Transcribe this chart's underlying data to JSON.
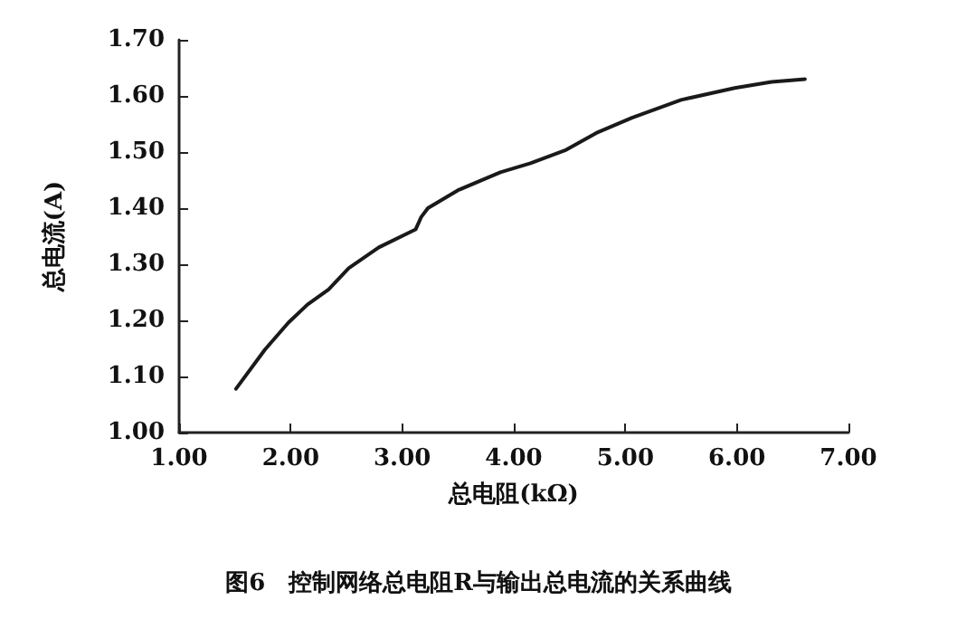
{
  "chart_data": {
    "type": "line",
    "title": "图6　控制网络总电阻R与输出总电流的关系曲线",
    "xlabel": "总电阻(kΩ)",
    "ylabel": "总电流(A)",
    "x": [
      1.51,
      1.77,
      1.98,
      2.15,
      2.34,
      2.52,
      2.79,
      3.12,
      3.17,
      3.23,
      3.5,
      3.88,
      4.15,
      4.47,
      4.74,
      5.06,
      5.5,
      5.98,
      6.31,
      6.61
    ],
    "series": [
      {
        "color": "#1a1a1a",
        "values": [
          1.078,
          1.148,
          1.196,
          1.228,
          1.255,
          1.293,
          1.33,
          1.362,
          1.384,
          1.4,
          1.432,
          1.464,
          1.48,
          1.504,
          1.534,
          1.561,
          1.593,
          1.614,
          1.625,
          1.63
        ]
      }
    ],
    "xlim": [
      1,
      7
    ],
    "xticks": [
      {
        "value": 1,
        "label": "1.00"
      },
      {
        "value": 2,
        "label": "2.00"
      },
      {
        "value": 3,
        "label": "3.00"
      },
      {
        "value": 4,
        "label": "4.00"
      },
      {
        "value": 5,
        "label": "5.00"
      },
      {
        "value": 6,
        "label": "6.00"
      },
      {
        "value": 7,
        "label": "7.00"
      }
    ],
    "ylim": [
      1,
      1.7
    ],
    "yticks": [
      {
        "value": 1,
        "label": "1.00"
      },
      {
        "value": 1.1,
        "label": "1.10"
      },
      {
        "value": 1.2,
        "label": "1.20"
      },
      {
        "value": 1.3,
        "label": "1.30"
      },
      {
        "value": 1.4,
        "label": "1.40"
      },
      {
        "value": 1.5,
        "label": "1.50"
      },
      {
        "value": 1.6,
        "label": "1.60"
      },
      {
        "value": 1.7,
        "label": "1.70"
      }
    ],
    "grid": false,
    "marker": "none",
    "line_style": "solid"
  }
}
